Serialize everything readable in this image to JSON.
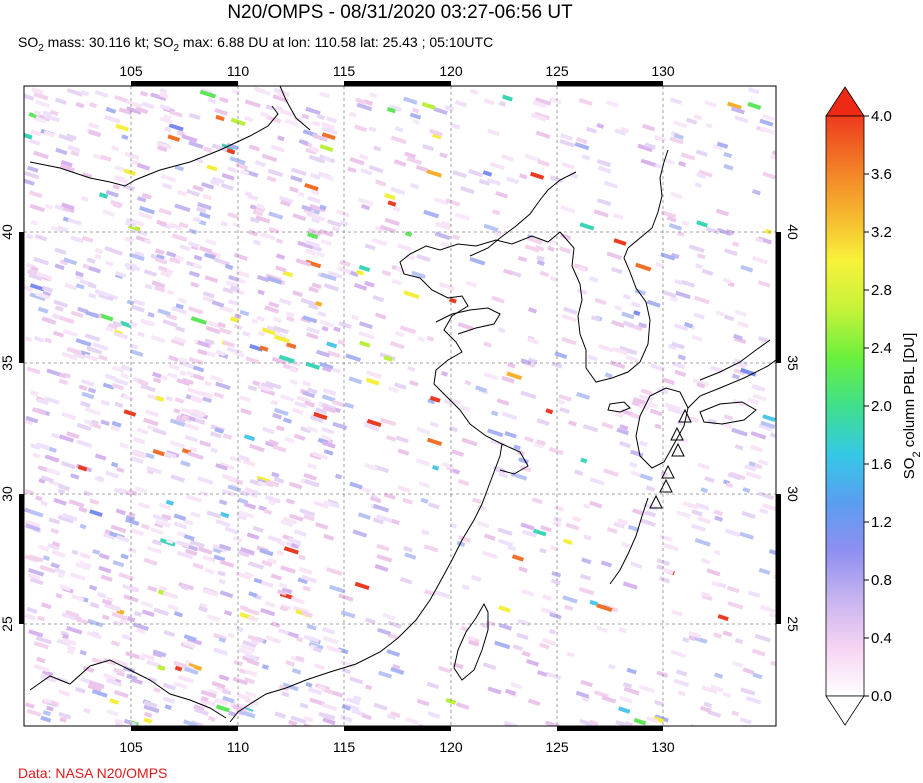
{
  "header": {
    "title": "N20/OMPS - 08/31/2020 03:27-06:56 UT",
    "subtitle_pre": "SO",
    "subtitle_sub1": "2",
    "subtitle_mid": " mass: 30.116 kt; SO",
    "subtitle_sub2": "2",
    "subtitle_post": " max: 6.88 DU at lon: 110.58 lat: 25.43 ; 05:10UTC"
  },
  "map": {
    "lon_range": [
      100,
      135
    ],
    "lat_range": [
      20,
      45
    ],
    "lon_ticks": [
      "105",
      "110",
      "115",
      "120",
      "125",
      "130"
    ],
    "lat_ticks": [
      "40",
      "35",
      "30",
      "25"
    ],
    "volcano_icon": "triangle-outline-icon"
  },
  "colorbar": {
    "label_main": "SO",
    "label_sub": "2",
    "label_rest": " column PBL [DU]",
    "ticks": [
      "4.0",
      "3.6",
      "3.2",
      "2.8",
      "2.4",
      "2.0",
      "1.6",
      "1.2",
      "0.8",
      "0.4",
      "0.0"
    ],
    "range": [
      0.0,
      4.0
    ],
    "colors": [
      "#ffffff",
      "#f6d3f2",
      "#c7b4f0",
      "#8f8ff0",
      "#5a9ef0",
      "#35c8e6",
      "#3fe08c",
      "#6af03c",
      "#c6f23a",
      "#f8f23a",
      "#f6b42e",
      "#f27a26",
      "#ee3a1e"
    ]
  },
  "footer": {
    "credit": "Data: NASA N20/OMPS"
  }
}
